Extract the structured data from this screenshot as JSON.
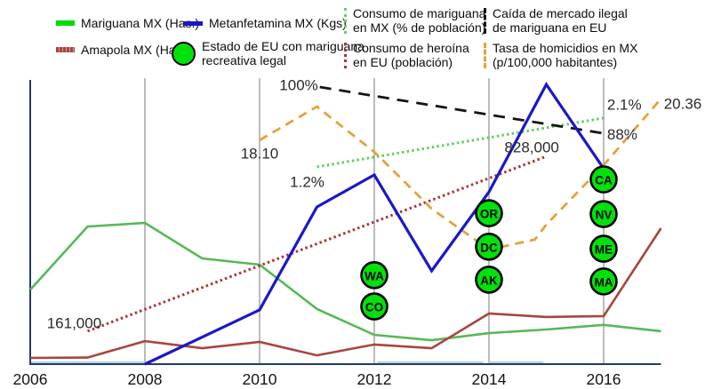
{
  "legend": {
    "items": [
      {
        "id": "mariguana",
        "label": "Mariguana MX (Has.)"
      },
      {
        "id": "amapola",
        "label": "Amapola MX (Has.)"
      },
      {
        "id": "metanfetamina",
        "label": "Metanfetamina MX (Kgs)"
      },
      {
        "id": "estado-eu",
        "lines": [
          "Estado de EU con mariguana",
          "recreativa legal"
        ]
      },
      {
        "id": "consumo-mariguana",
        "lines": [
          "Consumo de mariguana",
          "en MX (% de población)"
        ]
      },
      {
        "id": "consumo-heroina",
        "lines": [
          "Consumo de heroína",
          "en EU (población)"
        ]
      },
      {
        "id": "caida-mercado",
        "lines": [
          "Caída de mercado ilegal",
          "de mariguana en EU"
        ]
      },
      {
        "id": "tasa-homicidios",
        "lines": [
          "Tasa de homicidios en MX",
          "(p/100,000 habitantes)"
        ]
      }
    ]
  },
  "chart_data": {
    "type": "line",
    "title": "",
    "xlabel": "",
    "ylabel": "",
    "x_range": [
      2006,
      2017.2
    ],
    "grid": "vertical-only",
    "legend_position": "top",
    "y_units": "percent-of-plot-height (chart shows no numeric y-axis; each series has its own implicit scale)",
    "x_axis": {
      "ticks": [
        2006,
        2008,
        2010,
        2012,
        2014,
        2016
      ],
      "gridline_years": [
        2008,
        2010,
        2012,
        2014,
        2016
      ]
    },
    "colors": {
      "gridline": "#8f8f8f",
      "axis": "#1e3a66",
      "axis_highlight": "#b9d6de",
      "state_circle": "#00e20a",
      "annotation_text": "#2a2a2a",
      "tick_text": "#141414"
    },
    "series": [
      {
        "name": "Mariguana MX (Has.)",
        "color": "#58b858",
        "width": 2.6,
        "dasharray": "",
        "points": [
          [
            2006,
            26.2
          ],
          [
            2007,
            48.4
          ],
          [
            2008,
            49.7
          ],
          [
            2009,
            37.2
          ],
          [
            2010,
            35.0
          ],
          [
            2011,
            19.4
          ],
          [
            2012,
            10.3
          ],
          [
            2013,
            8.4
          ],
          [
            2014,
            10.9
          ],
          [
            2015,
            12.2
          ],
          [
            2016,
            13.8
          ],
          [
            2017,
            11.6
          ]
        ]
      },
      {
        "name": "Amapola MX (Has.)",
        "color": "#a8453f",
        "width": 2.6,
        "dasharray": "",
        "points": [
          [
            2006,
            2.2
          ],
          [
            2007,
            2.3
          ],
          [
            2008,
            8.1
          ],
          [
            2009,
            5.6
          ],
          [
            2010,
            7.8
          ],
          [
            2011,
            3.1
          ],
          [
            2012,
            6.9
          ],
          [
            2013,
            5.6
          ],
          [
            2014,
            17.8
          ],
          [
            2015,
            16.6
          ],
          [
            2016,
            16.9
          ],
          [
            2017,
            47.8
          ]
        ]
      },
      {
        "name": "Consumo de mariguana en MX (% de población)",
        "color": "#66cc66",
        "width": 3,
        "dasharray": "2.5 3.2",
        "points": [
          [
            2011,
            69.4
          ],
          [
            2016,
            86.6
          ]
        ],
        "value_start": "1.2%",
        "value_end": "2.1%"
      },
      {
        "name": "Consumo de heroína en EU (población)",
        "color": "#aa3535",
        "width": 3,
        "dasharray": "2.5 3.2",
        "points": [
          [
            2007,
            11.6
          ],
          [
            2015,
            73.1
          ]
        ],
        "value_start": "161,000",
        "value_end": "828,000"
      },
      {
        "name": "Caída de mercado ilegal de mariguana en EU",
        "color": "#141414",
        "width": 2.8,
        "dasharray": "13 9",
        "points": [
          [
            2011.05,
            97.5
          ],
          [
            2016,
            81.2
          ]
        ],
        "value_start": "100%",
        "value_end": "88%"
      },
      {
        "name": "Tasa de homicidios en MX (p/100,000 habitantes)",
        "color": "#e3a33c",
        "width": 2.8,
        "dasharray": "10 7",
        "points": [
          [
            2010,
            78.8
          ],
          [
            2011,
            90.6
          ],
          [
            2012,
            74.7
          ],
          [
            2013,
            54.7
          ],
          [
            2014,
            40.3
          ],
          [
            2014.8,
            43.8
          ],
          [
            2015,
            49.1
          ],
          [
            2016,
            70.0
          ],
          [
            2017,
            93.4
          ]
        ],
        "value_start": "18.10",
        "value_end": "20.36"
      },
      {
        "name": "Metanfetamina MX (Kgs)",
        "color": "#1a18c8",
        "width": 3.2,
        "dasharray": "",
        "points": [
          [
            2008,
            0
          ],
          [
            2009,
            9.5
          ],
          [
            2010,
            19.1
          ],
          [
            2011,
            55.3
          ],
          [
            2012,
            66.6
          ],
          [
            2013,
            32.8
          ],
          [
            2014,
            60.6
          ],
          [
            2015,
            98.4
          ],
          [
            2016,
            68.8
          ]
        ]
      }
    ],
    "state_markers": [
      {
        "label": "WA",
        "year": 2012,
        "v": 31.3
      },
      {
        "label": "CO",
        "year": 2012,
        "v": 20.3
      },
      {
        "label": "OR",
        "year": 2014,
        "v": 53.1
      },
      {
        "label": "DC",
        "year": 2014,
        "v": 41.3
      },
      {
        "label": "AK",
        "year": 2014,
        "v": 29.7
      },
      {
        "label": "CA",
        "year": 2016,
        "v": 65.0
      },
      {
        "label": "NV",
        "year": 2016,
        "v": 52.8
      },
      {
        "label": "ME",
        "year": 2016,
        "v": 40.6
      },
      {
        "label": "MA",
        "year": 2016,
        "v": 29.1
      }
    ],
    "annotations": [
      {
        "text": "100%",
        "year": 2011.02,
        "v": 98.2,
        "anchor": "end"
      },
      {
        "text": "88%",
        "year": 2016.06,
        "v": 80.8,
        "anchor": "start"
      },
      {
        "text": "2.1%",
        "year": 2016.06,
        "v": 91.3,
        "anchor": "start"
      },
      {
        "text": "20.36",
        "year": 2017.05,
        "v": 91.6,
        "anchor": "start"
      },
      {
        "text": "828,000",
        "year": 2014.27,
        "v": 76.3,
        "anchor": "start"
      },
      {
        "text": "18.10",
        "year": 2009.67,
        "v": 74.1,
        "anchor": "start"
      },
      {
        "text": "1.2%",
        "year": 2010.53,
        "v": 64.1,
        "anchor": "start"
      },
      {
        "text": "161,000",
        "year": 2006.29,
        "v": 14.4,
        "anchor": "start"
      }
    ],
    "axis_highlight_segments": [
      [
        2006,
        2008
      ],
      [
        2012.05,
        2013.9
      ],
      [
        2014,
        2014.95
      ]
    ]
  }
}
